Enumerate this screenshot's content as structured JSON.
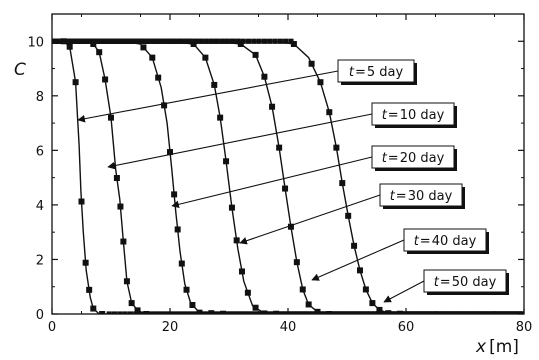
{
  "chart_data": {
    "type": "scatter",
    "xlim": [
      0,
      80
    ],
    "ylim": [
      0,
      11
    ],
    "x_ticks": [
      0,
      20,
      40,
      60,
      80
    ],
    "y_ticks": [
      0,
      2,
      4,
      6,
      8,
      10
    ],
    "xlabel": {
      "var": "x",
      "unit": "[m]"
    },
    "ylabel": {
      "var": "C"
    },
    "grid": false,
    "series": [
      {
        "name": "t = 5 day",
        "x": [
          0,
          2,
          3,
          4,
          4.3,
          4.6,
          4.9,
          5.3,
          5.8,
          6.5,
          7,
          8,
          10,
          20,
          40,
          60,
          80
        ],
        "y": [
          10,
          10,
          9.8,
          8.5,
          7.3,
          6.2,
          4.5,
          3.0,
          1.6,
          0.6,
          0.2,
          0,
          0,
          0,
          0,
          0,
          0
        ],
        "marker_x": [
          2,
          3,
          4,
          5,
          5.7,
          6.3,
          7,
          8.5
        ]
      },
      {
        "name": "t = 10 day",
        "x": [
          0,
          5,
          7,
          8,
          9,
          10,
          10.8,
          11.5,
          12,
          12.7,
          13.5,
          15,
          20,
          40,
          60,
          80
        ],
        "y": [
          10,
          10,
          9.9,
          9.6,
          8.6,
          7.2,
          5.3,
          4.2,
          2.9,
          1.2,
          0.4,
          0,
          0,
          0,
          0,
          0
        ],
        "marker_x": [
          7,
          8,
          9,
          10,
          11,
          11.6,
          12.1,
          12.7,
          13.5,
          14.5,
          16
        ]
      },
      {
        "name": "t = 20 day",
        "x": [
          0,
          12,
          15,
          17,
          18.5,
          19.5,
          20.3,
          21,
          21.7,
          22.5,
          23.5,
          25,
          30,
          40,
          60,
          80
        ],
        "y": [
          10,
          10,
          9.9,
          9.4,
          8.3,
          7,
          5.3,
          3.7,
          2.3,
          1.1,
          0.4,
          0.05,
          0,
          0,
          0,
          0
        ],
        "marker_x": [
          15.5,
          17,
          18,
          19,
          20,
          20.7,
          21.3,
          22,
          22.8,
          23.8,
          25,
          27,
          29
        ]
      },
      {
        "name": "t = 30 day",
        "x": [
          0,
          20,
          24,
          26,
          27.5,
          28.5,
          29.5,
          30.5,
          31.5,
          32.5,
          34,
          36,
          40,
          60,
          80
        ],
        "y": [
          10,
          10,
          9.9,
          9.4,
          8.4,
          7.2,
          5.6,
          3.9,
          2.4,
          1.2,
          0.3,
          0.02,
          0,
          0,
          0
        ],
        "marker_x": [
          24,
          26,
          27.5,
          28.5,
          29.5,
          30.5,
          31.3,
          32.2,
          33.2,
          34.5,
          36,
          38
        ]
      },
      {
        "name": "t = 40 day",
        "x": [
          0,
          28,
          32,
          34.5,
          36,
          37.3,
          38.5,
          39.5,
          40.5,
          41.5,
          42.5,
          43.5,
          45,
          47,
          50,
          60,
          80
        ],
        "y": [
          10,
          10,
          9.9,
          9.5,
          8.7,
          7.6,
          6.1,
          4.6,
          3.2,
          1.9,
          0.9,
          0.35,
          0.08,
          0,
          0,
          0,
          0
        ],
        "marker_x": [
          32,
          34.5,
          36,
          37.3,
          38.5,
          39.5,
          40.5,
          41.5,
          42.5,
          43.5,
          45,
          47
        ]
      },
      {
        "name": "t = 50 day",
        "x": [
          0,
          38,
          41,
          43.5,
          45.5,
          47,
          48.2,
          49.2,
          50.2,
          51.2,
          52.2,
          53.2,
          54.3,
          55.5,
          57,
          60,
          80
        ],
        "y": [
          10,
          10,
          9.9,
          9.4,
          8.5,
          7.4,
          6.1,
          4.8,
          3.6,
          2.5,
          1.6,
          0.9,
          0.4,
          0.15,
          0.03,
          0,
          0
        ],
        "marker_x": [
          41,
          44,
          45.5,
          47,
          48.2,
          49.2,
          50.2,
          51.2,
          52.2,
          53.2,
          54.3,
          55.5,
          57,
          59
        ]
      }
    ],
    "annotations": [
      {
        "var": "t",
        "eq": "=",
        "value": "5 day",
        "points_to_series": 0
      },
      {
        "var": "t",
        "eq": "=",
        "value": "10 day",
        "points_to_series": 1
      },
      {
        "var": "t",
        "eq": "=",
        "value": "20 day",
        "points_to_series": 2
      },
      {
        "var": "t",
        "eq": "=",
        "value": "30 day",
        "points_to_series": 3
      },
      {
        "var": "t",
        "eq": "=",
        "value": "40 day",
        "points_to_series": 4
      },
      {
        "var": "t",
        "eq": "=",
        "value": "50 day",
        "points_to_series": 5
      }
    ]
  }
}
